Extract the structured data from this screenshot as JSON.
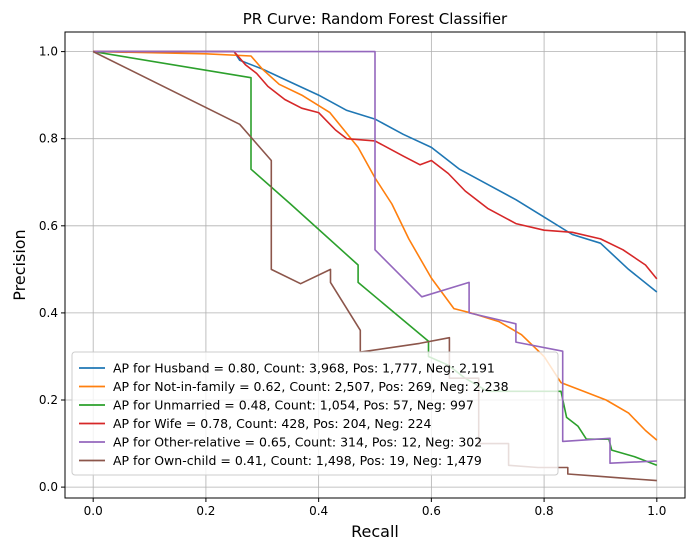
{
  "chart_data": {
    "type": "line",
    "title": "PR Curve: Random Forest Classifier",
    "xlabel": "Recall",
    "ylabel": "Precision",
    "xlim": [
      -0.05,
      1.05
    ],
    "ylim": [
      -0.025,
      1.045
    ],
    "xticks": [
      0.0,
      0.2,
      0.4,
      0.6,
      0.8,
      1.0
    ],
    "yticks": [
      0.0,
      0.2,
      0.4,
      0.6,
      0.8,
      1.0
    ],
    "xtick_labels": [
      "0.0",
      "0.2",
      "0.4",
      "0.6",
      "0.8",
      "1.0"
    ],
    "ytick_labels": [
      "0.0",
      "0.2",
      "0.4",
      "0.6",
      "0.8",
      "1.0"
    ],
    "grid": true,
    "legend_position": "lower-left",
    "series": [
      {
        "name": "AP for Husband = 0.80, Count: 3,968, Pos: 1,777, Neg: 2,191",
        "color": "#1f77b4",
        "points": [
          [
            0.0,
            1.0
          ],
          [
            0.25,
            1.0
          ],
          [
            0.26,
            0.98
          ],
          [
            0.3,
            0.96
          ],
          [
            0.35,
            0.93
          ],
          [
            0.4,
            0.9
          ],
          [
            0.45,
            0.865
          ],
          [
            0.5,
            0.845
          ],
          [
            0.55,
            0.81
          ],
          [
            0.6,
            0.78
          ],
          [
            0.65,
            0.73
          ],
          [
            0.7,
            0.695
          ],
          [
            0.75,
            0.66
          ],
          [
            0.8,
            0.62
          ],
          [
            0.85,
            0.58
          ],
          [
            0.9,
            0.56
          ],
          [
            0.95,
            0.5
          ],
          [
            1.0,
            0.448
          ]
        ]
      },
      {
        "name": "AP for Not-in-family = 0.62, Count: 2,507, Pos: 269, Neg: 2,238",
        "color": "#ff7f0e",
        "points": [
          [
            0.0,
            1.0
          ],
          [
            0.2,
            0.995
          ],
          [
            0.28,
            0.99
          ],
          [
            0.3,
            0.96
          ],
          [
            0.33,
            0.925
          ],
          [
            0.37,
            0.9
          ],
          [
            0.42,
            0.86
          ],
          [
            0.47,
            0.78
          ],
          [
            0.5,
            0.71
          ],
          [
            0.53,
            0.65
          ],
          [
            0.56,
            0.57
          ],
          [
            0.6,
            0.48
          ],
          [
            0.64,
            0.41
          ],
          [
            0.67,
            0.4
          ],
          [
            0.72,
            0.38
          ],
          [
            0.76,
            0.35
          ],
          [
            0.8,
            0.3
          ],
          [
            0.83,
            0.24
          ],
          [
            0.87,
            0.22
          ],
          [
            0.91,
            0.2
          ],
          [
            0.95,
            0.17
          ],
          [
            0.98,
            0.13
          ],
          [
            1.0,
            0.108
          ]
        ]
      },
      {
        "name": "AP for Unmarried = 0.48, Count: 1,054, Pos: 57, Neg: 997",
        "color": "#2ca02c",
        "points": [
          [
            0.0,
            1.0
          ],
          [
            0.28,
            0.94
          ],
          [
            0.28,
            0.73
          ],
          [
            0.35,
            0.65
          ],
          [
            0.47,
            0.51
          ],
          [
            0.47,
            0.47
          ],
          [
            0.595,
            0.335
          ],
          [
            0.595,
            0.3
          ],
          [
            0.63,
            0.28
          ],
          [
            0.66,
            0.25
          ],
          [
            0.7,
            0.22
          ],
          [
            0.83,
            0.22
          ],
          [
            0.84,
            0.16
          ],
          [
            0.86,
            0.14
          ],
          [
            0.875,
            0.11
          ],
          [
            0.915,
            0.11
          ],
          [
            0.92,
            0.085
          ],
          [
            0.96,
            0.07
          ],
          [
            1.0,
            0.05
          ]
        ]
      },
      {
        "name": "AP for Wife = 0.78, Count: 428, Pos: 204, Neg: 224",
        "color": "#d62728",
        "points": [
          [
            0.0,
            1.0
          ],
          [
            0.25,
            1.0
          ],
          [
            0.27,
            0.97
          ],
          [
            0.29,
            0.95
          ],
          [
            0.31,
            0.92
          ],
          [
            0.34,
            0.89
          ],
          [
            0.37,
            0.87
          ],
          [
            0.4,
            0.86
          ],
          [
            0.43,
            0.82
          ],
          [
            0.45,
            0.8
          ],
          [
            0.5,
            0.795
          ],
          [
            0.55,
            0.76
          ],
          [
            0.58,
            0.74
          ],
          [
            0.6,
            0.75
          ],
          [
            0.63,
            0.72
          ],
          [
            0.66,
            0.68
          ],
          [
            0.7,
            0.64
          ],
          [
            0.75,
            0.605
          ],
          [
            0.8,
            0.59
          ],
          [
            0.85,
            0.585
          ],
          [
            0.9,
            0.57
          ],
          [
            0.94,
            0.545
          ],
          [
            0.98,
            0.51
          ],
          [
            1.0,
            0.478
          ]
        ]
      },
      {
        "name": "AP for Other-relative = 0.65, Count: 314, Pos: 12, Neg: 302",
        "color": "#9467bd",
        "points": [
          [
            0.0,
            1.0
          ],
          [
            0.5,
            1.0
          ],
          [
            0.5,
            0.545
          ],
          [
            0.583,
            0.437
          ],
          [
            0.667,
            0.47
          ],
          [
            0.667,
            0.4
          ],
          [
            0.75,
            0.375
          ],
          [
            0.75,
            0.333
          ],
          [
            0.833,
            0.312
          ],
          [
            0.833,
            0.105
          ],
          [
            0.917,
            0.112
          ],
          [
            0.917,
            0.055
          ],
          [
            1.0,
            0.06
          ]
        ]
      },
      {
        "name": "AP for Own-child = 0.41, Count: 1,498, Pos: 19, Neg: 1,479",
        "color": "#8c564b",
        "points": [
          [
            0.0,
            1.0
          ],
          [
            0.26,
            0.833
          ],
          [
            0.316,
            0.75
          ],
          [
            0.316,
            0.5
          ],
          [
            0.368,
            0.467
          ],
          [
            0.421,
            0.5
          ],
          [
            0.421,
            0.47
          ],
          [
            0.474,
            0.36
          ],
          [
            0.474,
            0.31
          ],
          [
            0.579,
            0.33
          ],
          [
            0.632,
            0.343
          ],
          [
            0.632,
            0.25
          ],
          [
            0.684,
            0.25
          ],
          [
            0.684,
            0.1
          ],
          [
            0.737,
            0.1
          ],
          [
            0.737,
            0.05
          ],
          [
            0.789,
            0.045
          ],
          [
            0.842,
            0.045
          ],
          [
            0.842,
            0.03
          ],
          [
            0.895,
            0.025
          ],
          [
            0.947,
            0.02
          ],
          [
            1.0,
            0.015
          ]
        ]
      }
    ]
  }
}
